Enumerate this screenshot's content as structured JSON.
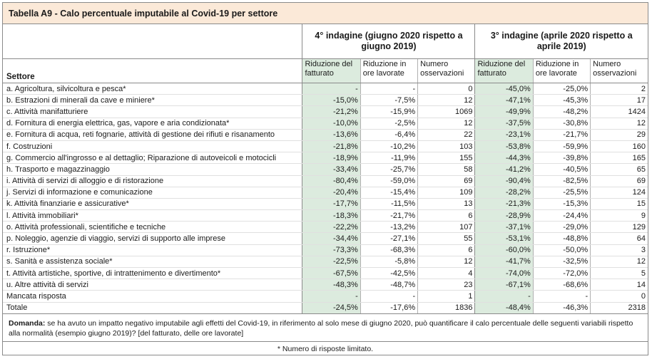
{
  "title": "Tabella A9 - Calo percentuale imputabile al Covid-19 per settore",
  "groups": {
    "g4": "4° indagine (giugno 2020 rispetto a giugno 2019)",
    "g3": "3° indagine (aprile 2020 rispetto a aprile 2019)"
  },
  "headers": {
    "settore": "Settore",
    "fatturato": "Riduzione del fatturato",
    "ore": "Riduzione in ore lavorate",
    "oss": "Numero osservazioni"
  },
  "rows": [
    {
      "label": "a. Agricoltura, silvicoltura e pesca*",
      "f4": "-",
      "o4": "-",
      "n4": "0",
      "f3": "-45,0%",
      "o3": "-25,0%",
      "n3": "2"
    },
    {
      "label": "b. Estrazioni di minerali da cave e miniere*",
      "f4": "-15,0%",
      "o4": "-7,5%",
      "n4": "12",
      "f3": "-47,1%",
      "o3": "-45,3%",
      "n3": "17"
    },
    {
      "label": "c. Attività manifatturiere",
      "f4": "-21,2%",
      "o4": "-15,9%",
      "n4": "1069",
      "f3": "-49,9%",
      "o3": "-48,2%",
      "n3": "1424"
    },
    {
      "label": "d. Fornitura di energia elettrica, gas, vapore e aria condizionata*",
      "f4": "-10,0%",
      "o4": "-2,5%",
      "n4": "12",
      "f3": "-37,5%",
      "o3": "-30,8%",
      "n3": "12"
    },
    {
      "label": "e. Fornitura di acqua, reti fognarie, attività di gestione dei rifiuti e risanamento",
      "f4": "-13,6%",
      "o4": "-6,4%",
      "n4": "22",
      "f3": "-23,1%",
      "o3": "-21,7%",
      "n3": "29"
    },
    {
      "label": "f. Costruzioni",
      "f4": "-21,8%",
      "o4": "-10,2%",
      "n4": "103",
      "f3": "-53,8%",
      "o3": "-59,9%",
      "n3": "160"
    },
    {
      "label": "g. Commercio all'ingrosso e al dettaglio; Riparazione di autoveicoli e motocicli",
      "f4": "-18,9%",
      "o4": "-11,9%",
      "n4": "155",
      "f3": "-44,3%",
      "o3": "-39,8%",
      "n3": "165"
    },
    {
      "label": "h. Trasporto e magazzinaggio",
      "f4": "-33,4%",
      "o4": "-25,7%",
      "n4": "58",
      "f3": "-41,2%",
      "o3": "-40,5%",
      "n3": "65"
    },
    {
      "label": "i. Attività di servizi di alloggio e di ristorazione",
      "f4": "-80,4%",
      "o4": "-59,0%",
      "n4": "69",
      "f3": "-90,4%",
      "o3": "-82,5%",
      "n3": "69"
    },
    {
      "label": "j. Servizi di informazione e comunicazione",
      "f4": "-20,4%",
      "o4": "-15,4%",
      "n4": "109",
      "f3": "-28,2%",
      "o3": "-25,5%",
      "n3": "124"
    },
    {
      "label": "k. Attività finanziarie e assicurative*",
      "f4": "-17,7%",
      "o4": "-11,5%",
      "n4": "13",
      "f3": "-21,3%",
      "o3": "-15,3%",
      "n3": "15"
    },
    {
      "label": "l. Attività immobiliari*",
      "f4": "-18,3%",
      "o4": "-21,7%",
      "n4": "6",
      "f3": "-28,9%",
      "o3": "-24,4%",
      "n3": "9"
    },
    {
      "label": "o. Attività professionali, scientifiche e tecniche",
      "f4": "-22,2%",
      "o4": "-13,2%",
      "n4": "107",
      "f3": "-37,1%",
      "o3": "-29,0%",
      "n3": "129"
    },
    {
      "label": "p. Noleggio, agenzie di viaggio, servizi di supporto alle imprese",
      "f4": "-34,4%",
      "o4": "-27,1%",
      "n4": "55",
      "f3": "-53,1%",
      "o3": "-48,8%",
      "n3": "64"
    },
    {
      "label": "r. Istruzione*",
      "f4": "-73,3%",
      "o4": "-68,3%",
      "n4": "6",
      "f3": "-60,0%",
      "o3": "-50,0%",
      "n3": "3"
    },
    {
      "label": "s. Sanità e assistenza sociale*",
      "f4": "-22,5%",
      "o4": "-5,8%",
      "n4": "12",
      "f3": "-41,7%",
      "o3": "-32,5%",
      "n3": "12"
    },
    {
      "label": "t. Attività artistiche, sportive, di intrattenimento e divertimento*",
      "f4": "-67,5%",
      "o4": "-42,5%",
      "n4": "4",
      "f3": "-74,0%",
      "o3": "-72,0%",
      "n3": "5"
    },
    {
      "label": "u. Altre attività di servizi",
      "f4": "-48,3%",
      "o4": "-48,7%",
      "n4": "23",
      "f3": "-67,1%",
      "o3": "-68,6%",
      "n3": "14"
    },
    {
      "label": "Mancata risposta",
      "f4": "-",
      "o4": "-",
      "n4": "1",
      "f3": "-",
      "o3": "-",
      "n3": "0"
    }
  ],
  "total": {
    "label": "Totale",
    "f4": "-24,5%",
    "o4": "-17,6%",
    "n4": "1836",
    "f3": "-48,4%",
    "o3": "-46,3%",
    "n3": "2318"
  },
  "note": {
    "label": "Domanda:",
    "text": "se ha avuto un impatto negativo imputabile agli effetti del Covid-19, in riferimento al solo mese di giugno 2020, può quantificare il calo percentuale delle seguenti variabili rispetto alla normalità (esempio giugno 2019)? [del fatturato, delle ore lavorate]"
  },
  "footnote": "* Numero di risposte limitato."
}
